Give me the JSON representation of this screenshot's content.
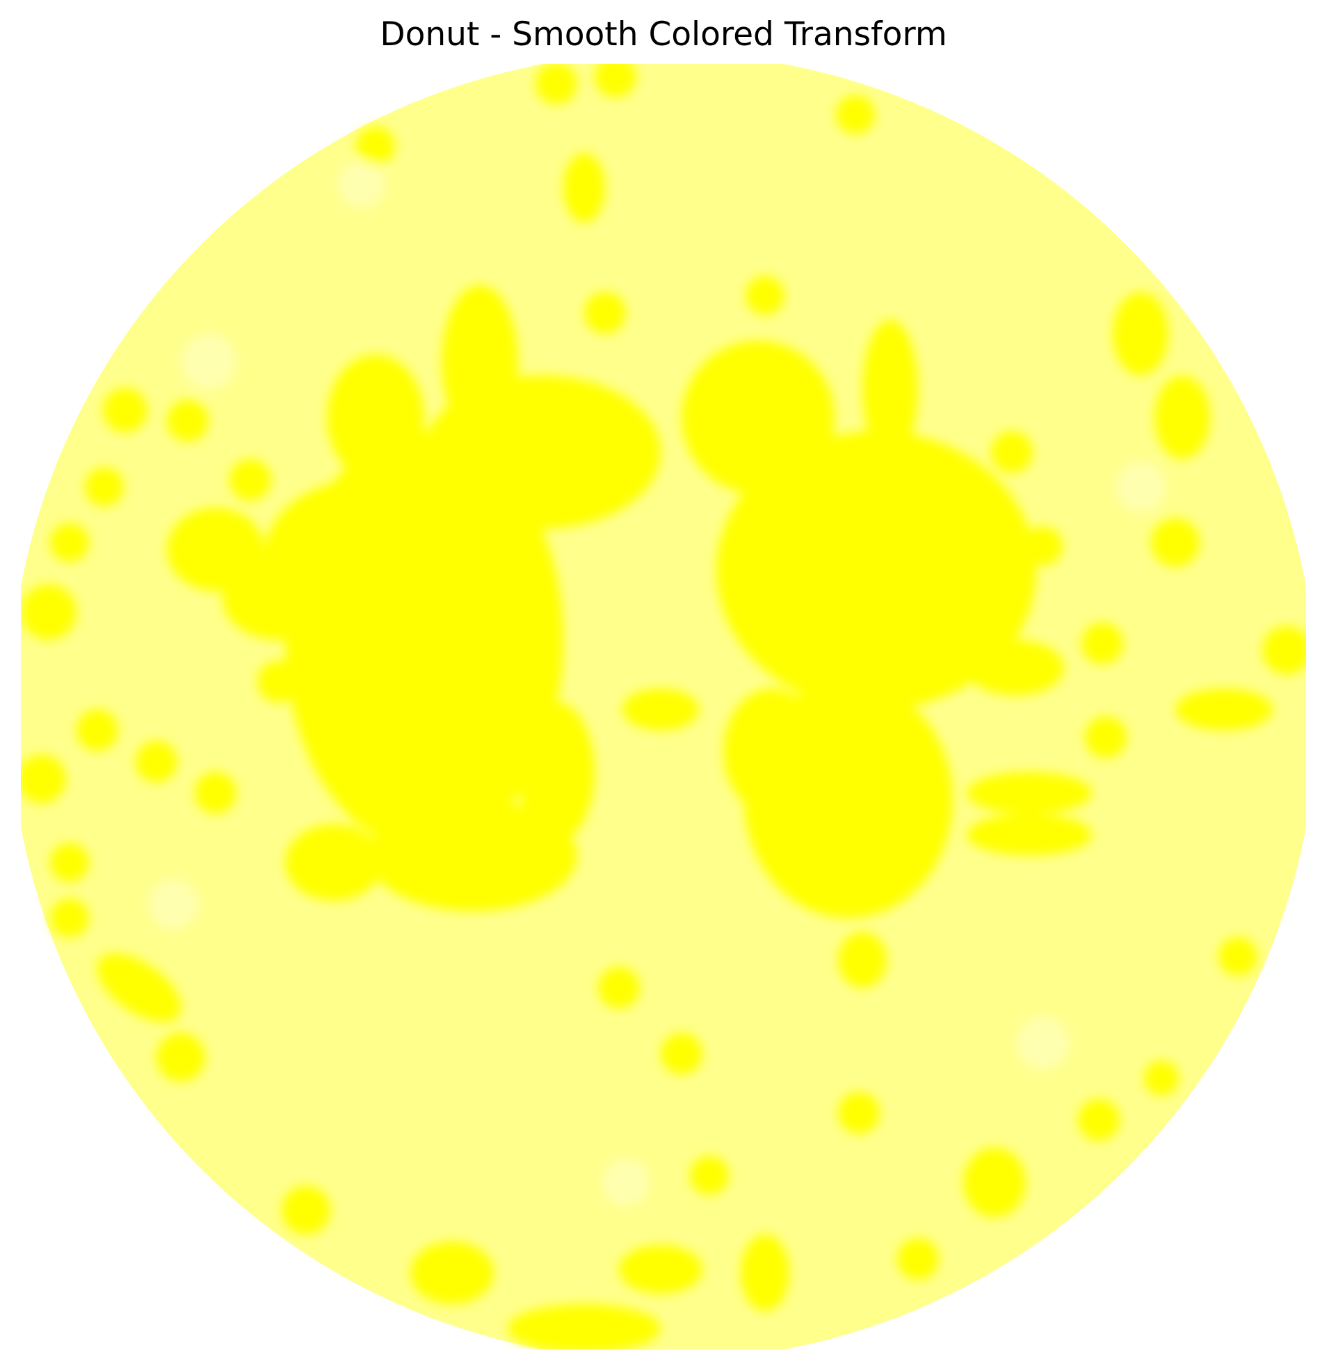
{
  "figure": {
    "title": "Donut - Smooth Colored Transform"
  },
  "colors": {
    "background": "#ffffff",
    "pale_yellow": "#ffff8c",
    "pale_yellow_light": "#ffffb0",
    "bright_yellow": "#ffff00"
  }
}
